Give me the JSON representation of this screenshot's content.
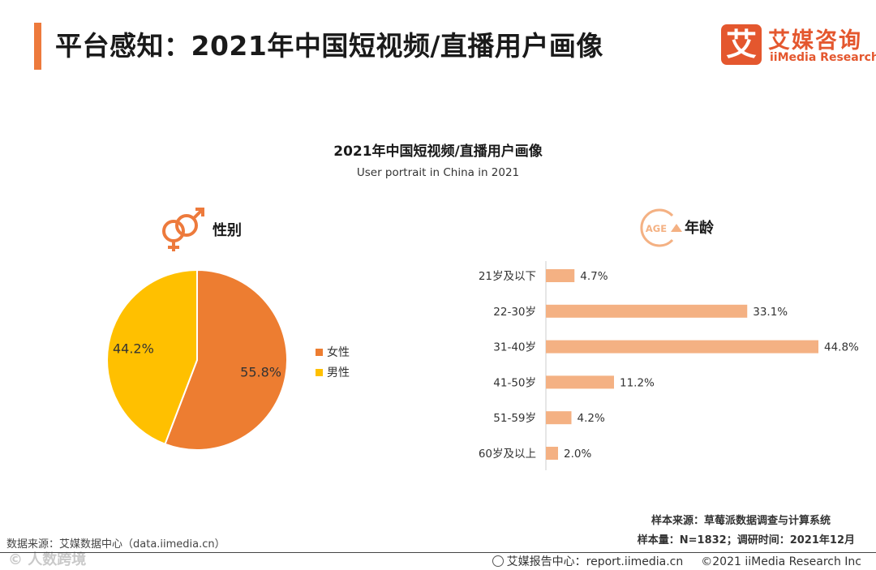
{
  "header": {
    "title": "平台感知：2021年中国短视频/直播用户画像",
    "logo_mark": "艾",
    "logo_cn": "艾媒咨询",
    "logo_en": "iiMedia Research"
  },
  "colors": {
    "accent": "#ED7A3C",
    "female": "#ED7D31",
    "male": "#FFC000",
    "age_bar": "#F4B183"
  },
  "chart_data": [
    {
      "type": "pie",
      "title": "2021年中国短视频/直播用户画像",
      "subtitle": "User portrait in China in 2021",
      "section_label": "性别",
      "section_icon": "gender-icon",
      "slices": [
        {
          "label": "女性",
          "value": 55.8,
          "display": "55.8%"
        },
        {
          "label": "男性",
          "value": 44.2,
          "display": "44.2%"
        }
      ],
      "legend": "right"
    },
    {
      "type": "bar",
      "orientation": "horizontal",
      "section_label": "年龄",
      "section_icon": "age-icon",
      "icon_text": "AGE",
      "categories": [
        "21岁及以下",
        "22-30岁",
        "31-40岁",
        "41-50岁",
        "51-59岁",
        "60岁及以上"
      ],
      "values": [
        4.7,
        33.1,
        44.8,
        11.2,
        4.2,
        2.0
      ],
      "labels": [
        "4.7%",
        "33.1%",
        "44.8%",
        "11.2%",
        "4.2%",
        "2.0%"
      ],
      "xlim": [
        0,
        44.8
      ]
    }
  ],
  "footer": {
    "source_left": "数据来源：艾媒数据中心（data.iimedia.cn）",
    "sample_source": "样本来源：草莓派数据调查与计算系统",
    "sample_size": "样本量：N=1832；调研时间：2021年12月",
    "report_center": "艾媒报告中心：report.iimedia.cn",
    "copyright": "©2021  iiMedia Research  Inc",
    "watermark": "© 人数跨境"
  }
}
